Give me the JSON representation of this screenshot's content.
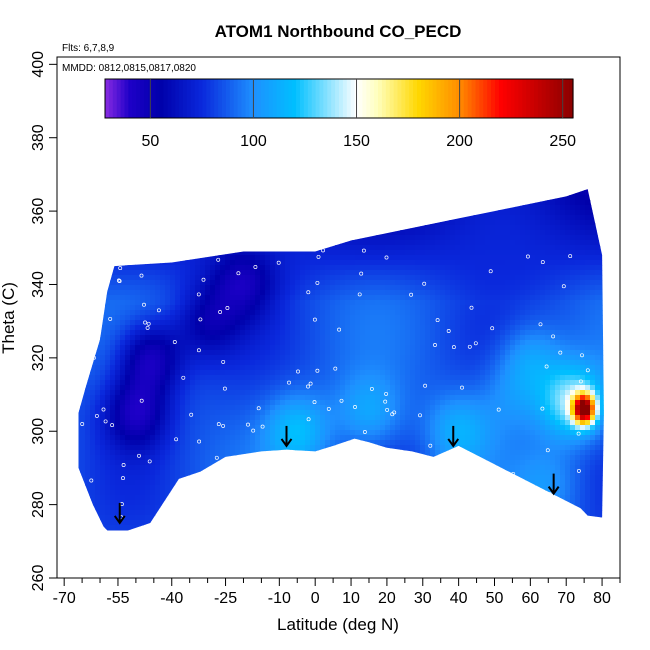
{
  "chart_data": {
    "type": "heatmap",
    "title": "ATOM1 Northbound CO_PECD",
    "flights_note": "Flts: 6,7,8,9",
    "dates_note": "MMDD: 0812,0815,0817,0820",
    "xlabel": "Latitude (deg N)",
    "ylabel": "Theta (C)",
    "xlim": [
      -72,
      85
    ],
    "ylim": [
      260,
      402
    ],
    "x_ticks": [
      -70,
      -55,
      -40,
      -25,
      -10,
      0,
      10,
      20,
      30,
      40,
      50,
      60,
      70,
      80
    ],
    "x_tick_labels": [
      "-70",
      "-55",
      "-40",
      "-25",
      "-10",
      "0",
      "10",
      "20",
      "30",
      "40",
      "50",
      "60",
      "70",
      "80"
    ],
    "x_minor_ticks": [
      -65,
      -60,
      -50,
      -45,
      -35,
      -30,
      -20,
      -15,
      -5,
      5,
      15,
      25,
      35,
      45,
      55,
      65,
      75,
      85
    ],
    "y_ticks": [
      260,
      280,
      300,
      320,
      340,
      360,
      380,
      400
    ],
    "y_tick_labels": [
      "260",
      "280",
      "300",
      "320",
      "340",
      "360",
      "380",
      "400"
    ],
    "colorbar": {
      "range": [
        28,
        255
      ],
      "ticks": [
        50,
        100,
        150,
        200,
        250
      ],
      "tick_labels": [
        "50",
        "100",
        "150",
        "200",
        "250"
      ]
    },
    "data_region": {
      "lower_boundary": [
        [
          -57,
          272
        ],
        [
          -52,
          273
        ],
        [
          -46,
          275
        ],
        [
          -38,
          287
        ],
        [
          -32,
          289
        ],
        [
          -25,
          293
        ],
        [
          -15,
          294.5
        ],
        [
          -8,
          295
        ],
        [
          0,
          294.5
        ],
        [
          5,
          296
        ],
        [
          11,
          298
        ],
        [
          15,
          297
        ],
        [
          20,
          295.5
        ],
        [
          27,
          294.5
        ],
        [
          33,
          293
        ],
        [
          40,
          296
        ],
        [
          50,
          291
        ],
        [
          60,
          286
        ],
        [
          68,
          282
        ],
        [
          74,
          279
        ],
        [
          76,
          277
        ],
        [
          80,
          276.5
        ]
      ],
      "upper_boundary": [
        [
          -64,
          312
        ],
        [
          -60,
          325
        ],
        [
          -58,
          338
        ],
        [
          -56,
          345
        ],
        [
          -40,
          346
        ],
        [
          -20,
          349
        ],
        [
          0,
          349
        ],
        [
          10,
          352
        ],
        [
          20,
          354
        ],
        [
          30,
          356
        ],
        [
          40,
          358
        ],
        [
          50,
          360
        ],
        [
          60,
          362
        ],
        [
          70,
          364
        ],
        [
          76,
          366
        ],
        [
          80,
          348
        ],
        [
          80.5,
          305
        ]
      ],
      "left_edge": [
        [
          -66,
          305
        ],
        [
          -66,
          290
        ],
        [
          -62,
          280
        ],
        [
          -59,
          274
        ]
      ],
      "base_value": 85,
      "features": [
        {
          "lat": -50,
          "theta": 305,
          "value": 45
        },
        {
          "lat": -46,
          "theta": 320,
          "value": 40
        },
        {
          "lat": -30,
          "theta": 330,
          "value": 58
        },
        {
          "lat": -20,
          "theta": 340,
          "value": 55
        },
        {
          "lat": -5,
          "theta": 300,
          "value": 118
        },
        {
          "lat": 15,
          "theta": 305,
          "value": 110
        },
        {
          "lat": 40,
          "theta": 300,
          "value": 112
        },
        {
          "lat": 55,
          "theta": 310,
          "value": 100
        },
        {
          "lat": 60,
          "theta": 320,
          "value": 110
        },
        {
          "lat": 72,
          "theta": 308,
          "value": 140
        },
        {
          "lat": 75,
          "theta": 306,
          "value": 235
        },
        {
          "lat": 65,
          "theta": 285,
          "value": 100
        }
      ]
    },
    "arrows": [
      {
        "lat": -54.5,
        "theta": 275
      },
      {
        "lat": -8,
        "theta": 296
      },
      {
        "lat": 38.5,
        "theta": 296
      },
      {
        "lat": 66.5,
        "theta": 283
      }
    ]
  }
}
